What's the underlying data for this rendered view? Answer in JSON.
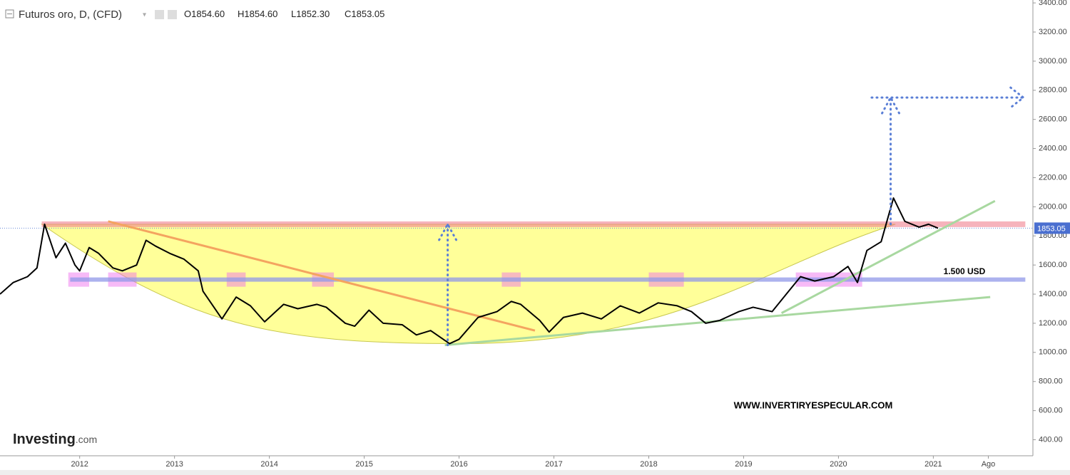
{
  "chart_data": {
    "type": "line",
    "title": "Futuros oro, D, (CFD)",
    "ohlc": [
      {
        "label": "O",
        "value": "1854.60"
      },
      {
        "label": "H",
        "value": "1854.60"
      },
      {
        "label": "L",
        "value": "1852.30"
      },
      {
        "label": "C",
        "value": "1853.05"
      }
    ],
    "x": [
      2011.16,
      2011.3,
      2011.45,
      2011.55,
      2011.63,
      2011.75,
      2011.85,
      2011.95,
      2012.0,
      2012.1,
      2012.2,
      2012.35,
      2012.45,
      2012.6,
      2012.7,
      2012.8,
      2012.95,
      2013.1,
      2013.25,
      2013.3,
      2013.5,
      2013.65,
      2013.8,
      2013.95,
      2014.15,
      2014.3,
      2014.5,
      2014.6,
      2014.8,
      2014.9,
      2015.05,
      2015.2,
      2015.4,
      2015.55,
      2015.7,
      2015.9,
      2016.0,
      2016.2,
      2016.4,
      2016.55,
      2016.65,
      2016.85,
      2016.95,
      2017.1,
      2017.3,
      2017.5,
      2017.7,
      2017.9,
      2018.1,
      2018.3,
      2018.45,
      2018.6,
      2018.75,
      2018.95,
      2019.1,
      2019.3,
      2019.45,
      2019.6,
      2019.75,
      2019.95,
      2020.1,
      2020.2,
      2020.3,
      2020.45,
      2020.58,
      2020.7,
      2020.85,
      2020.95,
      2021.05
    ],
    "series": [
      {
        "name": "Futuros oro",
        "color": "#000000",
        "values": [
          1400,
          1480,
          1520,
          1580,
          1880,
          1650,
          1750,
          1600,
          1560,
          1720,
          1680,
          1580,
          1560,
          1600,
          1770,
          1730,
          1680,
          1640,
          1560,
          1420,
          1230,
          1380,
          1320,
          1210,
          1330,
          1300,
          1330,
          1310,
          1200,
          1180,
          1290,
          1200,
          1190,
          1120,
          1150,
          1060,
          1090,
          1240,
          1280,
          1350,
          1330,
          1220,
          1140,
          1240,
          1270,
          1230,
          1320,
          1270,
          1340,
          1320,
          1280,
          1200,
          1220,
          1280,
          1310,
          1280,
          1400,
          1520,
          1490,
          1520,
          1590,
          1480,
          1700,
          1760,
          2060,
          1900,
          1860,
          1880,
          1853.05
        ]
      }
    ],
    "xlim": [
      2011.16,
      2022.05
    ],
    "ylim": [
      290,
      3420
    ],
    "xticks": [
      2012,
      2013,
      2014,
      2015,
      2016,
      2017,
      2018,
      2019,
      2020,
      2021,
      {
        "value": 2021.58,
        "label": "Ago"
      }
    ],
    "yticks": [
      {
        "value": 400,
        "label": "400.00"
      },
      {
        "value": 600,
        "label": "600.00"
      },
      {
        "value": 800,
        "label": "800.00"
      },
      {
        "value": 1000,
        "label": "1000.00"
      },
      {
        "value": 1200,
        "label": "1200.00"
      },
      {
        "value": 1400,
        "label": "1400.00"
      },
      {
        "value": 1600,
        "label": "1600.00"
      },
      {
        "value": 1800,
        "label": "1800.00"
      },
      {
        "value": 2000,
        "label": "2000.00"
      },
      {
        "value": 2200,
        "label": "2200.00"
      },
      {
        "value": 2400,
        "label": "2400.00"
      },
      {
        "value": 2600,
        "label": "2600.00"
      },
      {
        "value": 2800,
        "label": "2800.00"
      },
      {
        "value": 3000,
        "label": "3000.00"
      },
      {
        "value": 3200,
        "label": "3200.00"
      },
      {
        "value": 3400,
        "label": "3400.00"
      }
    ],
    "last_price": {
      "value": 1853.05,
      "label": "1853.05"
    },
    "resistance": {
      "value": 1880,
      "x": [
        2011.6,
        2021.97
      ]
    },
    "support": {
      "value": 1500,
      "label": "1.500 USD",
      "x": [
        2011.9,
        2021.97
      ]
    },
    "cup": {
      "x": [
        2011.6,
        2016.0,
        2020.6
      ],
      "y": [
        1880,
        1060,
        1880
      ]
    },
    "zones": [
      {
        "x": [
          2011.88,
          2012.1
        ],
        "y": 1500
      },
      {
        "x": [
          2012.3,
          2012.6
        ],
        "y": 1500
      },
      {
        "x": [
          2013.55,
          2013.75
        ],
        "y": 1500
      },
      {
        "x": [
          2014.45,
          2014.68
        ],
        "y": 1500
      },
      {
        "x": [
          2016.45,
          2016.65
        ],
        "y": 1500
      },
      {
        "x": [
          2018.0,
          2018.37
        ],
        "y": 1500
      },
      {
        "x": [
          2019.55,
          2020.25
        ],
        "y": 1500
      }
    ],
    "trendlines": [
      {
        "color": "#f4a460",
        "x": [
          2012.3,
          2016.8
        ],
        "y": [
          1900,
          1150
        ]
      },
      {
        "color": "#a8d8a0",
        "x": [
          2015.85,
          2021.6
        ],
        "y": [
          1050,
          1380
        ]
      },
      {
        "color": "#a8d8a0",
        "x": [
          2019.4,
          2021.65
        ],
        "y": [
          1270,
          2040
        ]
      }
    ],
    "measures": [
      {
        "x": 2015.88,
        "y": [
          1050,
          1880
        ]
      },
      {
        "x": 2020.55,
        "y": [
          1880,
          2750
        ]
      }
    ],
    "target": {
      "value": 2750,
      "x": [
        2020.35,
        2021.95
      ]
    },
    "watermark": "WWW.INVERTIRYESPECULAR.COM",
    "logo": "Investing",
    "logo_suffix": ".com"
  }
}
